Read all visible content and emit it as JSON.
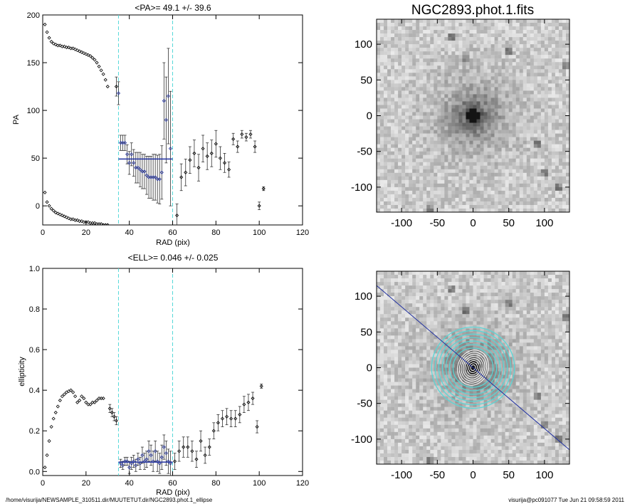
{
  "footer": {
    "path": "/home/visurija/NEWSAMPLE_310511.dir/MUUTETUT.dir/NGC2893.phot.1_ellipse",
    "user_time": "visurija@pc091077  Tue Jun 21 09:58:59 2011"
  },
  "chart_data": [
    {
      "id": "pa",
      "type": "scatter",
      "title": "<PA>=  49.1 +/-  39.6",
      "xlabel": "RAD (pix)",
      "ylabel": "PA",
      "xlim": [
        0,
        120
      ],
      "ylim": [
        -20,
        200
      ],
      "xticks": [
        0,
        20,
        40,
        60,
        80,
        100,
        120
      ],
      "yticks": [
        0,
        50,
        100,
        150,
        200
      ],
      "mean_line": {
        "y": 49.1,
        "x_from": 35,
        "x_to": 60
      },
      "vlines": [
        35,
        60
      ],
      "series": [
        {
          "points_x": [
            1,
            2,
            3,
            4,
            5,
            6,
            7,
            8,
            9,
            10,
            11,
            12,
            13,
            14,
            15,
            16,
            17,
            18,
            19,
            20,
            21,
            22,
            23,
            24,
            25,
            26,
            27,
            28,
            29,
            30
          ],
          "points_y": [
            190,
            182,
            176,
            172,
            170,
            169,
            168,
            168,
            167,
            167,
            166,
            166,
            165,
            165,
            164,
            163,
            162,
            161,
            160,
            159,
            158,
            157,
            155,
            153,
            150,
            146,
            142,
            138,
            132,
            125
          ]
        },
        {
          "points_x": [
            1,
            2,
            3,
            4,
            5,
            6,
            7,
            8,
            9,
            10,
            11,
            12,
            13,
            14,
            15,
            16,
            17,
            18,
            19,
            20,
            21,
            22,
            23,
            24,
            25,
            26,
            27,
            28,
            29,
            30
          ],
          "points_y": [
            14,
            4,
            0,
            -3,
            -5,
            -7,
            -8,
            -9,
            -10,
            -11,
            -12,
            -13,
            -14,
            -14,
            -15,
            -15,
            -16,
            -16,
            -17,
            -17,
            -17,
            -18,
            -18,
            -18,
            -19,
            -19,
            -19,
            -20,
            -20,
            -20
          ]
        },
        {
          "points_x": [
            34,
            35,
            36,
            37,
            38,
            39,
            40,
            41,
            42,
            43,
            44,
            45,
            46,
            47,
            48,
            49,
            50,
            51,
            52,
            53,
            54,
            55,
            56,
            57,
            58,
            59
          ],
          "points_y": [
            125,
            118,
            66,
            66,
            66,
            54,
            45,
            54,
            45,
            40,
            40,
            38,
            36,
            36,
            32,
            30,
            30,
            30,
            30,
            28,
            28,
            35,
            110,
            90,
            115,
            60
          ],
          "errors": [
            10,
            12,
            8,
            8,
            8,
            10,
            12,
            12,
            14,
            16,
            16,
            18,
            18,
            18,
            20,
            22,
            22,
            24,
            24,
            25,
            26,
            28,
            40,
            45,
            50,
            60
          ]
        },
        {
          "points_x": [
            62,
            64,
            66,
            68,
            70,
            72,
            74,
            76,
            78,
            80,
            82,
            84,
            86,
            88,
            90,
            92,
            94,
            96,
            98,
            100,
            102
          ],
          "points_y": [
            -10,
            30,
            35,
            48,
            55,
            40,
            60,
            52,
            55,
            65,
            50,
            45,
            38,
            70,
            62,
            75,
            72,
            75,
            62,
            0,
            18
          ],
          "errors": [
            12,
            14,
            14,
            14,
            14,
            14,
            14,
            14,
            14,
            14,
            12,
            10,
            8,
            6,
            6,
            4,
            4,
            4,
            6,
            4,
            2
          ]
        }
      ]
    },
    {
      "id": "ell",
      "type": "scatter",
      "title": "<ELL>= 0.046 +/-  0.025",
      "xlabel": "RAD (pix)",
      "ylabel": "ellipticity",
      "xlim": [
        0,
        120
      ],
      "ylim": [
        -0.02,
        1.0
      ],
      "xticks": [
        0,
        20,
        40,
        60,
        80,
        100,
        120
      ],
      "yticks": [
        0.0,
        0.2,
        0.4,
        0.6,
        0.8,
        1.0
      ],
      "mean_line": {
        "y": 0.046,
        "x_from": 35,
        "x_to": 60
      },
      "vlines": [
        35,
        60
      ],
      "series": [
        {
          "points_x": [
            1,
            2,
            3,
            4,
            5,
            6,
            7,
            8,
            9,
            10,
            11,
            12,
            13,
            14,
            15,
            16,
            17,
            18,
            19,
            20,
            21,
            22,
            23,
            24,
            25,
            26,
            27,
            28
          ],
          "points_y": [
            0.02,
            0.08,
            0.15,
            0.22,
            0.26,
            0.29,
            0.32,
            0.35,
            0.37,
            0.38,
            0.39,
            0.395,
            0.4,
            0.39,
            0.37,
            0.34,
            0.35,
            0.37,
            0.36,
            0.34,
            0.33,
            0.33,
            0.34,
            0.34,
            0.35,
            0.36,
            0.36,
            0.36
          ]
        },
        {
          "points_x": [
            31,
            32,
            33,
            34
          ],
          "points_y": [
            0.31,
            0.29,
            0.27,
            0.25
          ],
          "errors": [
            0.02,
            0.02,
            0.02,
            0.02
          ]
        },
        {
          "points_x": [
            36,
            37,
            38,
            39,
            40,
            41,
            42,
            43,
            44,
            45,
            46,
            47,
            48,
            49,
            50,
            51,
            52,
            53,
            54,
            55,
            56,
            57,
            58,
            59
          ],
          "points_y": [
            0.04,
            0.03,
            0.05,
            0.05,
            0.02,
            0.04,
            0.05,
            0.03,
            0.06,
            0.04,
            0.08,
            0.05,
            0.06,
            0.1,
            0.08,
            0.05,
            0.1,
            0.05,
            0.04,
            0.07,
            0.12,
            0.09,
            0.05,
            0.04
          ],
          "errors": [
            0.02,
            0.02,
            0.02,
            0.02,
            0.03,
            0.03,
            0.03,
            0.03,
            0.03,
            0.03,
            0.04,
            0.04,
            0.04,
            0.05,
            0.05,
            0.05,
            0.05,
            0.05,
            0.05,
            0.06,
            0.06,
            0.06,
            0.06,
            0.06
          ]
        },
        {
          "points_x": [
            61,
            63,
            65,
            67,
            69,
            71,
            73,
            75,
            77,
            79,
            81,
            83,
            85,
            87,
            89,
            91,
            93,
            95,
            97,
            99,
            101
          ],
          "points_y": [
            0.05,
            0.1,
            0.12,
            0.12,
            0.1,
            0.06,
            0.15,
            0.08,
            0.12,
            0.2,
            0.24,
            0.26,
            0.27,
            0.26,
            0.26,
            0.28,
            0.33,
            0.34,
            0.36,
            0.22,
            0.42
          ],
          "errors": [
            0.04,
            0.05,
            0.05,
            0.05,
            0.05,
            0.04,
            0.05,
            0.04,
            0.04,
            0.04,
            0.04,
            0.04,
            0.04,
            0.04,
            0.04,
            0.04,
            0.04,
            0.04,
            0.03,
            0.03,
            0.01
          ]
        }
      ]
    },
    {
      "id": "img1",
      "type": "heatmap",
      "title": "NGC2893.phot.1.fits",
      "xlim": [
        -135,
        135
      ],
      "ylim": [
        -135,
        135
      ],
      "xticks": [
        -100,
        -50,
        0,
        50,
        100
      ],
      "yticks": [
        -100,
        -50,
        0,
        50,
        100
      ],
      "galaxy_center": [
        0,
        0
      ]
    },
    {
      "id": "img2",
      "type": "heatmap",
      "title": "",
      "xlim": [
        -135,
        135
      ],
      "ylim": [
        -135,
        135
      ],
      "xticks": [
        -100,
        -50,
        0,
        50,
        100
      ],
      "yticks": [
        -100,
        -50,
        0,
        50,
        100
      ],
      "pa_line": {
        "from": [
          -135,
          115
        ],
        "to": [
          135,
          -115
        ]
      },
      "contours": {
        "center": [
          0,
          0
        ],
        "radii_cyan": [
          28,
          33,
          38,
          43,
          48,
          53,
          58
        ],
        "radii_white": [
          4,
          7,
          10,
          13,
          16,
          19,
          22,
          25
        ]
      }
    }
  ],
  "colors": {
    "error": "#333333",
    "blue": "#2030a0",
    "cyan": "#55d8d8",
    "grid_dark": "#000000"
  }
}
